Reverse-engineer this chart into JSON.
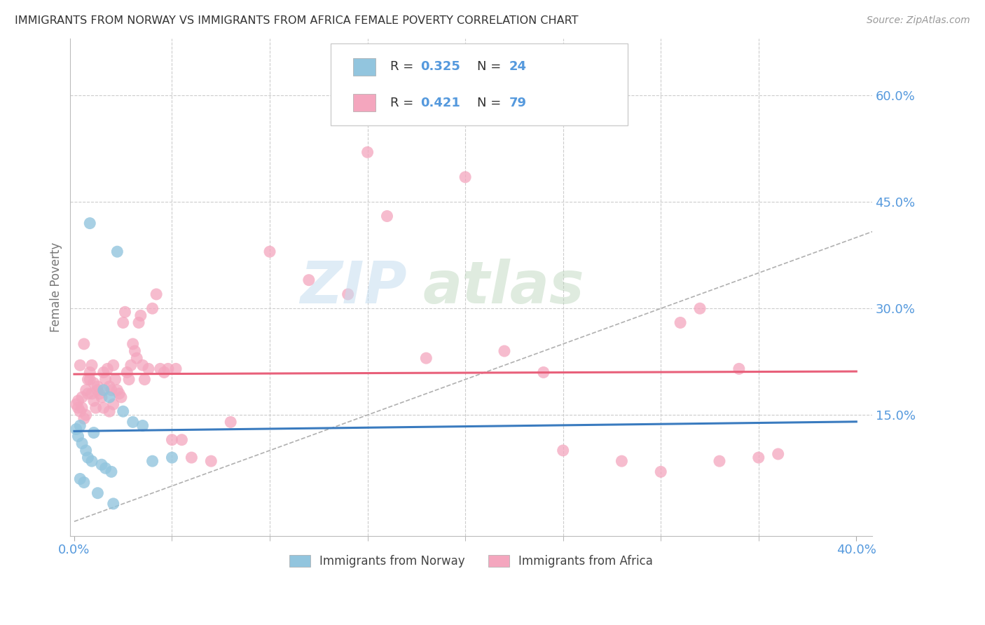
{
  "title": "IMMIGRANTS FROM NORWAY VS IMMIGRANTS FROM AFRICA FEMALE POVERTY CORRELATION CHART",
  "source": "Source: ZipAtlas.com",
  "ylabel": "Female Poverty",
  "xlim": [
    -0.002,
    0.408
  ],
  "ylim": [
    -0.02,
    0.68
  ],
  "ytick_positions": [
    0.15,
    0.3,
    0.45,
    0.6
  ],
  "ytick_labels": [
    "15.0%",
    "30.0%",
    "45.0%",
    "60.0%"
  ],
  "xtick_major": [
    0.0,
    0.4
  ],
  "xtick_major_labels": [
    "0.0%",
    "40.0%"
  ],
  "xtick_minor": [
    0.05,
    0.1,
    0.15,
    0.2,
    0.25,
    0.3,
    0.35
  ],
  "norway_color": "#92c5de",
  "africa_color": "#f4a6be",
  "norway_line_color": "#3a7bbf",
  "africa_line_color": "#e8607a",
  "diagonal_color": "#b0b0b0",
  "background_color": "#ffffff",
  "grid_color": "#cccccc",
  "axis_label_color": "#5599dd",
  "watermark_zip_color": "#c8ddf0",
  "watermark_atlas_color": "#c0ddc0",
  "legend_border_color": "#cccccc",
  "legend_text_color": "#333333",
  "legend_value_color": "#5599dd",
  "norway_x": [
    0.001,
    0.002,
    0.003,
    0.004,
    0.005,
    0.006,
    0.007,
    0.008,
    0.009,
    0.01,
    0.012,
    0.014,
    0.015,
    0.016,
    0.018,
    0.019,
    0.02,
    0.022,
    0.025,
    0.03,
    0.035,
    0.04,
    0.05,
    0.003
  ],
  "norway_y": [
    0.13,
    0.12,
    0.135,
    0.11,
    0.055,
    0.1,
    0.09,
    0.42,
    0.085,
    0.125,
    0.04,
    0.08,
    0.185,
    0.075,
    0.175,
    0.07,
    0.025,
    0.38,
    0.155,
    0.14,
    0.135,
    0.085,
    0.09,
    0.06
  ],
  "africa_x": [
    0.001,
    0.002,
    0.002,
    0.003,
    0.003,
    0.004,
    0.004,
    0.005,
    0.005,
    0.006,
    0.006,
    0.007,
    0.007,
    0.008,
    0.008,
    0.009,
    0.009,
    0.01,
    0.01,
    0.011,
    0.012,
    0.012,
    0.013,
    0.014,
    0.015,
    0.015,
    0.016,
    0.017,
    0.018,
    0.018,
    0.019,
    0.02,
    0.02,
    0.021,
    0.022,
    0.023,
    0.024,
    0.025,
    0.026,
    0.027,
    0.028,
    0.029,
    0.03,
    0.031,
    0.032,
    0.033,
    0.034,
    0.035,
    0.036,
    0.038,
    0.04,
    0.042,
    0.044,
    0.046,
    0.048,
    0.05,
    0.052,
    0.055,
    0.06,
    0.07,
    0.08,
    0.1,
    0.12,
    0.14,
    0.15,
    0.16,
    0.18,
    0.2,
    0.22,
    0.24,
    0.25,
    0.28,
    0.3,
    0.31,
    0.32,
    0.33,
    0.34,
    0.35,
    0.36
  ],
  "africa_y": [
    0.165,
    0.17,
    0.16,
    0.22,
    0.155,
    0.16,
    0.175,
    0.25,
    0.145,
    0.15,
    0.185,
    0.18,
    0.2,
    0.2,
    0.21,
    0.22,
    0.18,
    0.17,
    0.195,
    0.16,
    0.19,
    0.185,
    0.18,
    0.175,
    0.21,
    0.16,
    0.2,
    0.215,
    0.19,
    0.155,
    0.185,
    0.22,
    0.165,
    0.2,
    0.185,
    0.18,
    0.175,
    0.28,
    0.295,
    0.21,
    0.2,
    0.22,
    0.25,
    0.24,
    0.23,
    0.28,
    0.29,
    0.22,
    0.2,
    0.215,
    0.3,
    0.32,
    0.215,
    0.21,
    0.215,
    0.115,
    0.215,
    0.115,
    0.09,
    0.085,
    0.14,
    0.38,
    0.34,
    0.32,
    0.52,
    0.43,
    0.23,
    0.485,
    0.24,
    0.21,
    0.1,
    0.085,
    0.07,
    0.28,
    0.3,
    0.085,
    0.215,
    0.09,
    0.095
  ]
}
